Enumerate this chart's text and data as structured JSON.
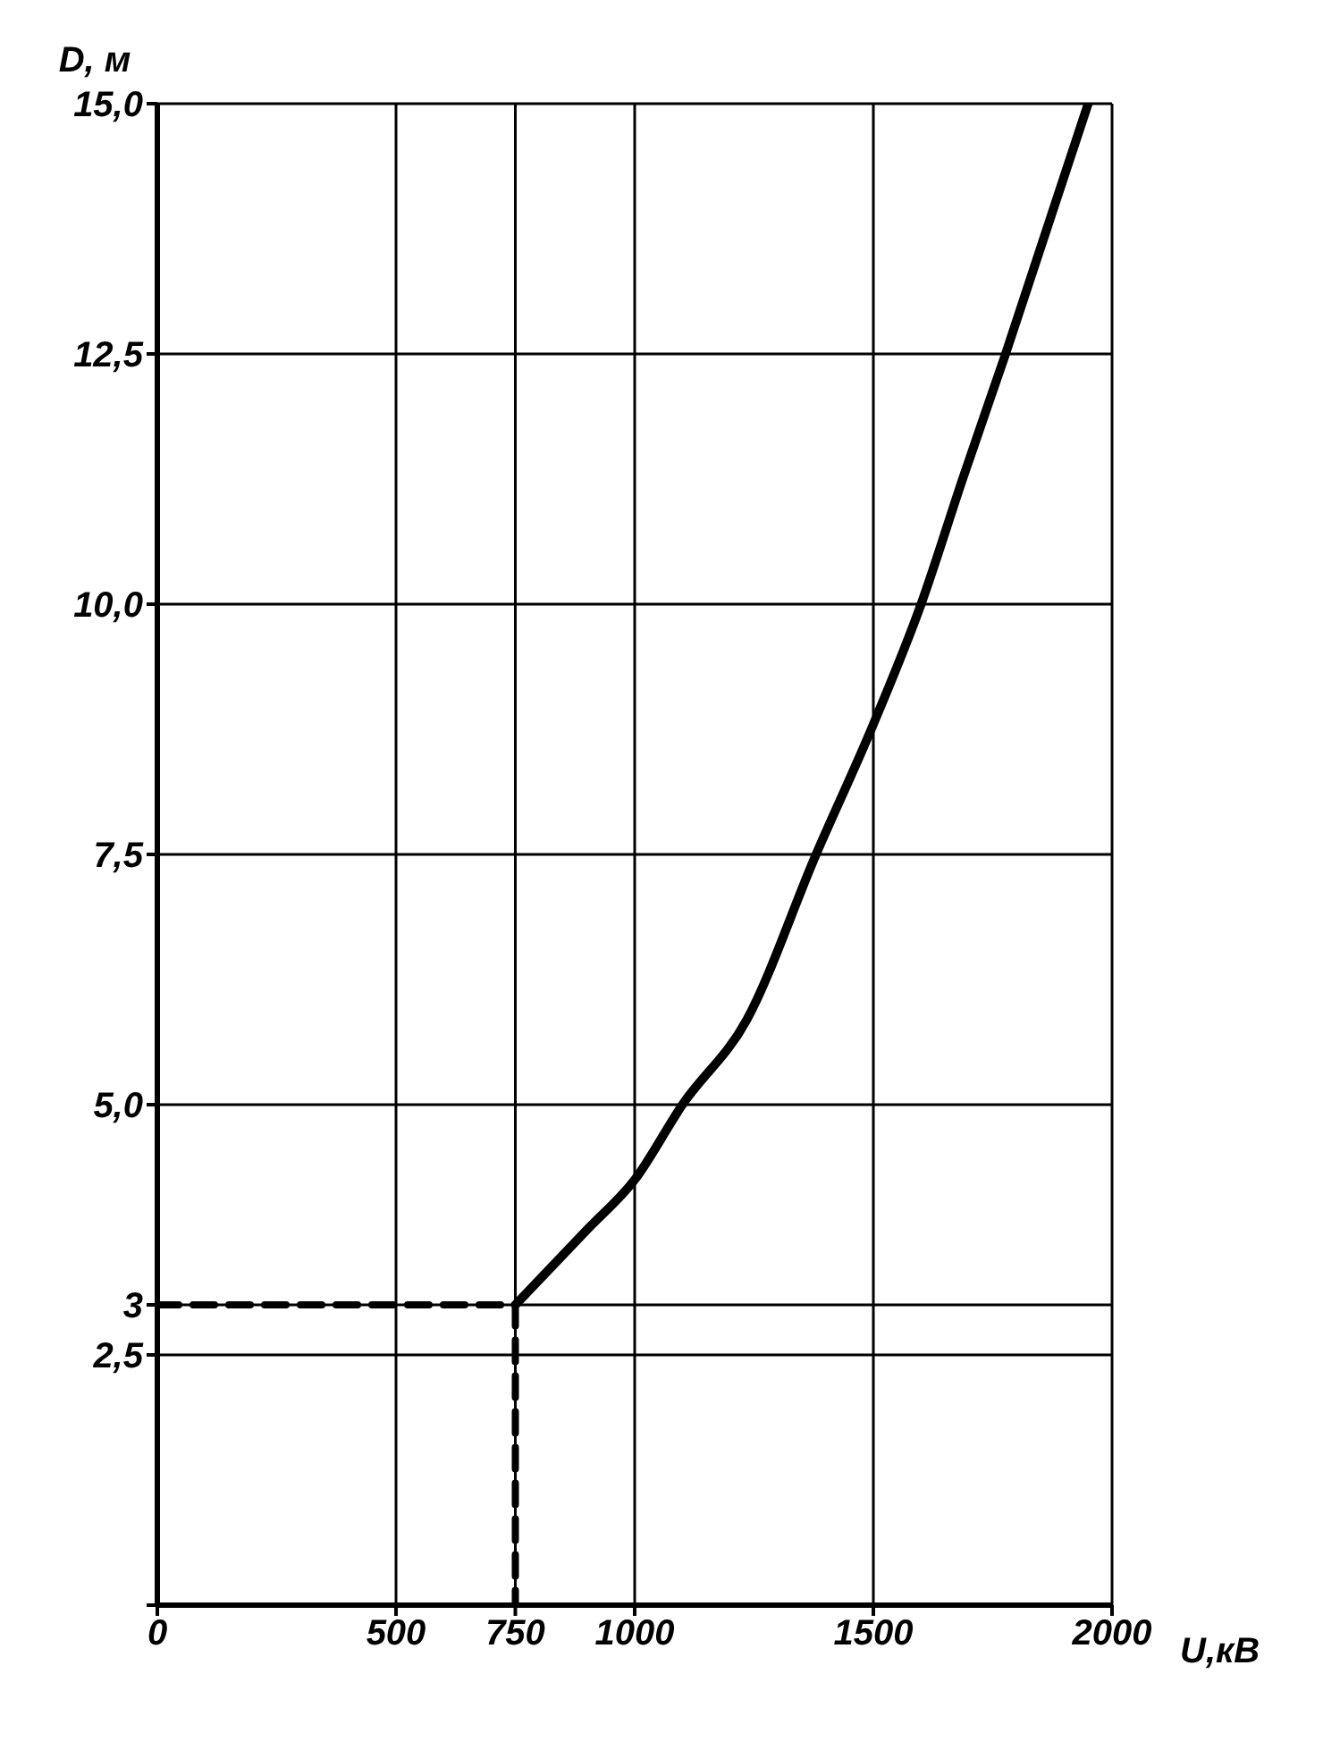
{
  "chart_data": {
    "type": "line",
    "xlabel": "U,кВ",
    "ylabel": "D, м",
    "series": [
      {
        "color": "#000000",
        "x": [
          750,
          800,
          900,
          1000,
          1100,
          1235,
          1380,
          1500,
          1600,
          1687,
          1777,
          1950
        ],
        "values": [
          3,
          3.25,
          3.75,
          4.25,
          5,
          5.85,
          7.5,
          8.8,
          10,
          11.25,
          12.5,
          15
        ]
      },
      {
        "color": "#000000",
        "line_style": "dashed",
        "x": [
          0,
          750,
          750
        ],
        "values": [
          3,
          3,
          0
        ]
      }
    ],
    "xlim": [
      0,
      2000
    ],
    "xticks": [
      0,
      500,
      750,
      1000,
      1500,
      2000
    ],
    "ylim": [
      0,
      15
    ],
    "yticks": [
      {
        "value": 0,
        "label": null
      },
      {
        "value": 2.5,
        "label": "2,5"
      },
      3,
      {
        "value": 5,
        "label": "5,0"
      },
      {
        "value": 7.5,
        "label": "7,5"
      },
      {
        "value": 10,
        "label": "10,0"
      },
      {
        "value": 12.5,
        "label": "12,5"
      },
      {
        "value": 15,
        "label": "15,0"
      }
    ],
    "grid": true,
    "marker": "none",
    "line_style": "solid"
  }
}
